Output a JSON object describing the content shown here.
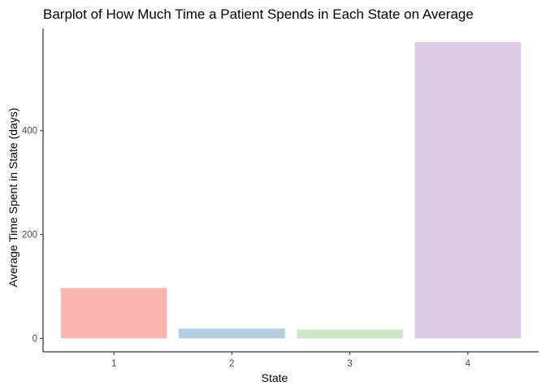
{
  "chart_data": {
    "type": "bar",
    "title": "Barplot of How Much Time a Patient Spends in Each State on Average",
    "xlabel": "State",
    "ylabel": "Average Time Spent in State (days)",
    "categories": [
      "1",
      "2",
      "3",
      "4"
    ],
    "values": [
      97,
      19,
      17,
      570
    ],
    "colors": [
      "#FBB4AE",
      "#B3CDE3",
      "#CCEBC5",
      "#DECBE4"
    ],
    "ylim": [
      0,
      600
    ],
    "yticks": [
      0,
      200,
      400
    ],
    "grid": false,
    "legend": "none"
  }
}
